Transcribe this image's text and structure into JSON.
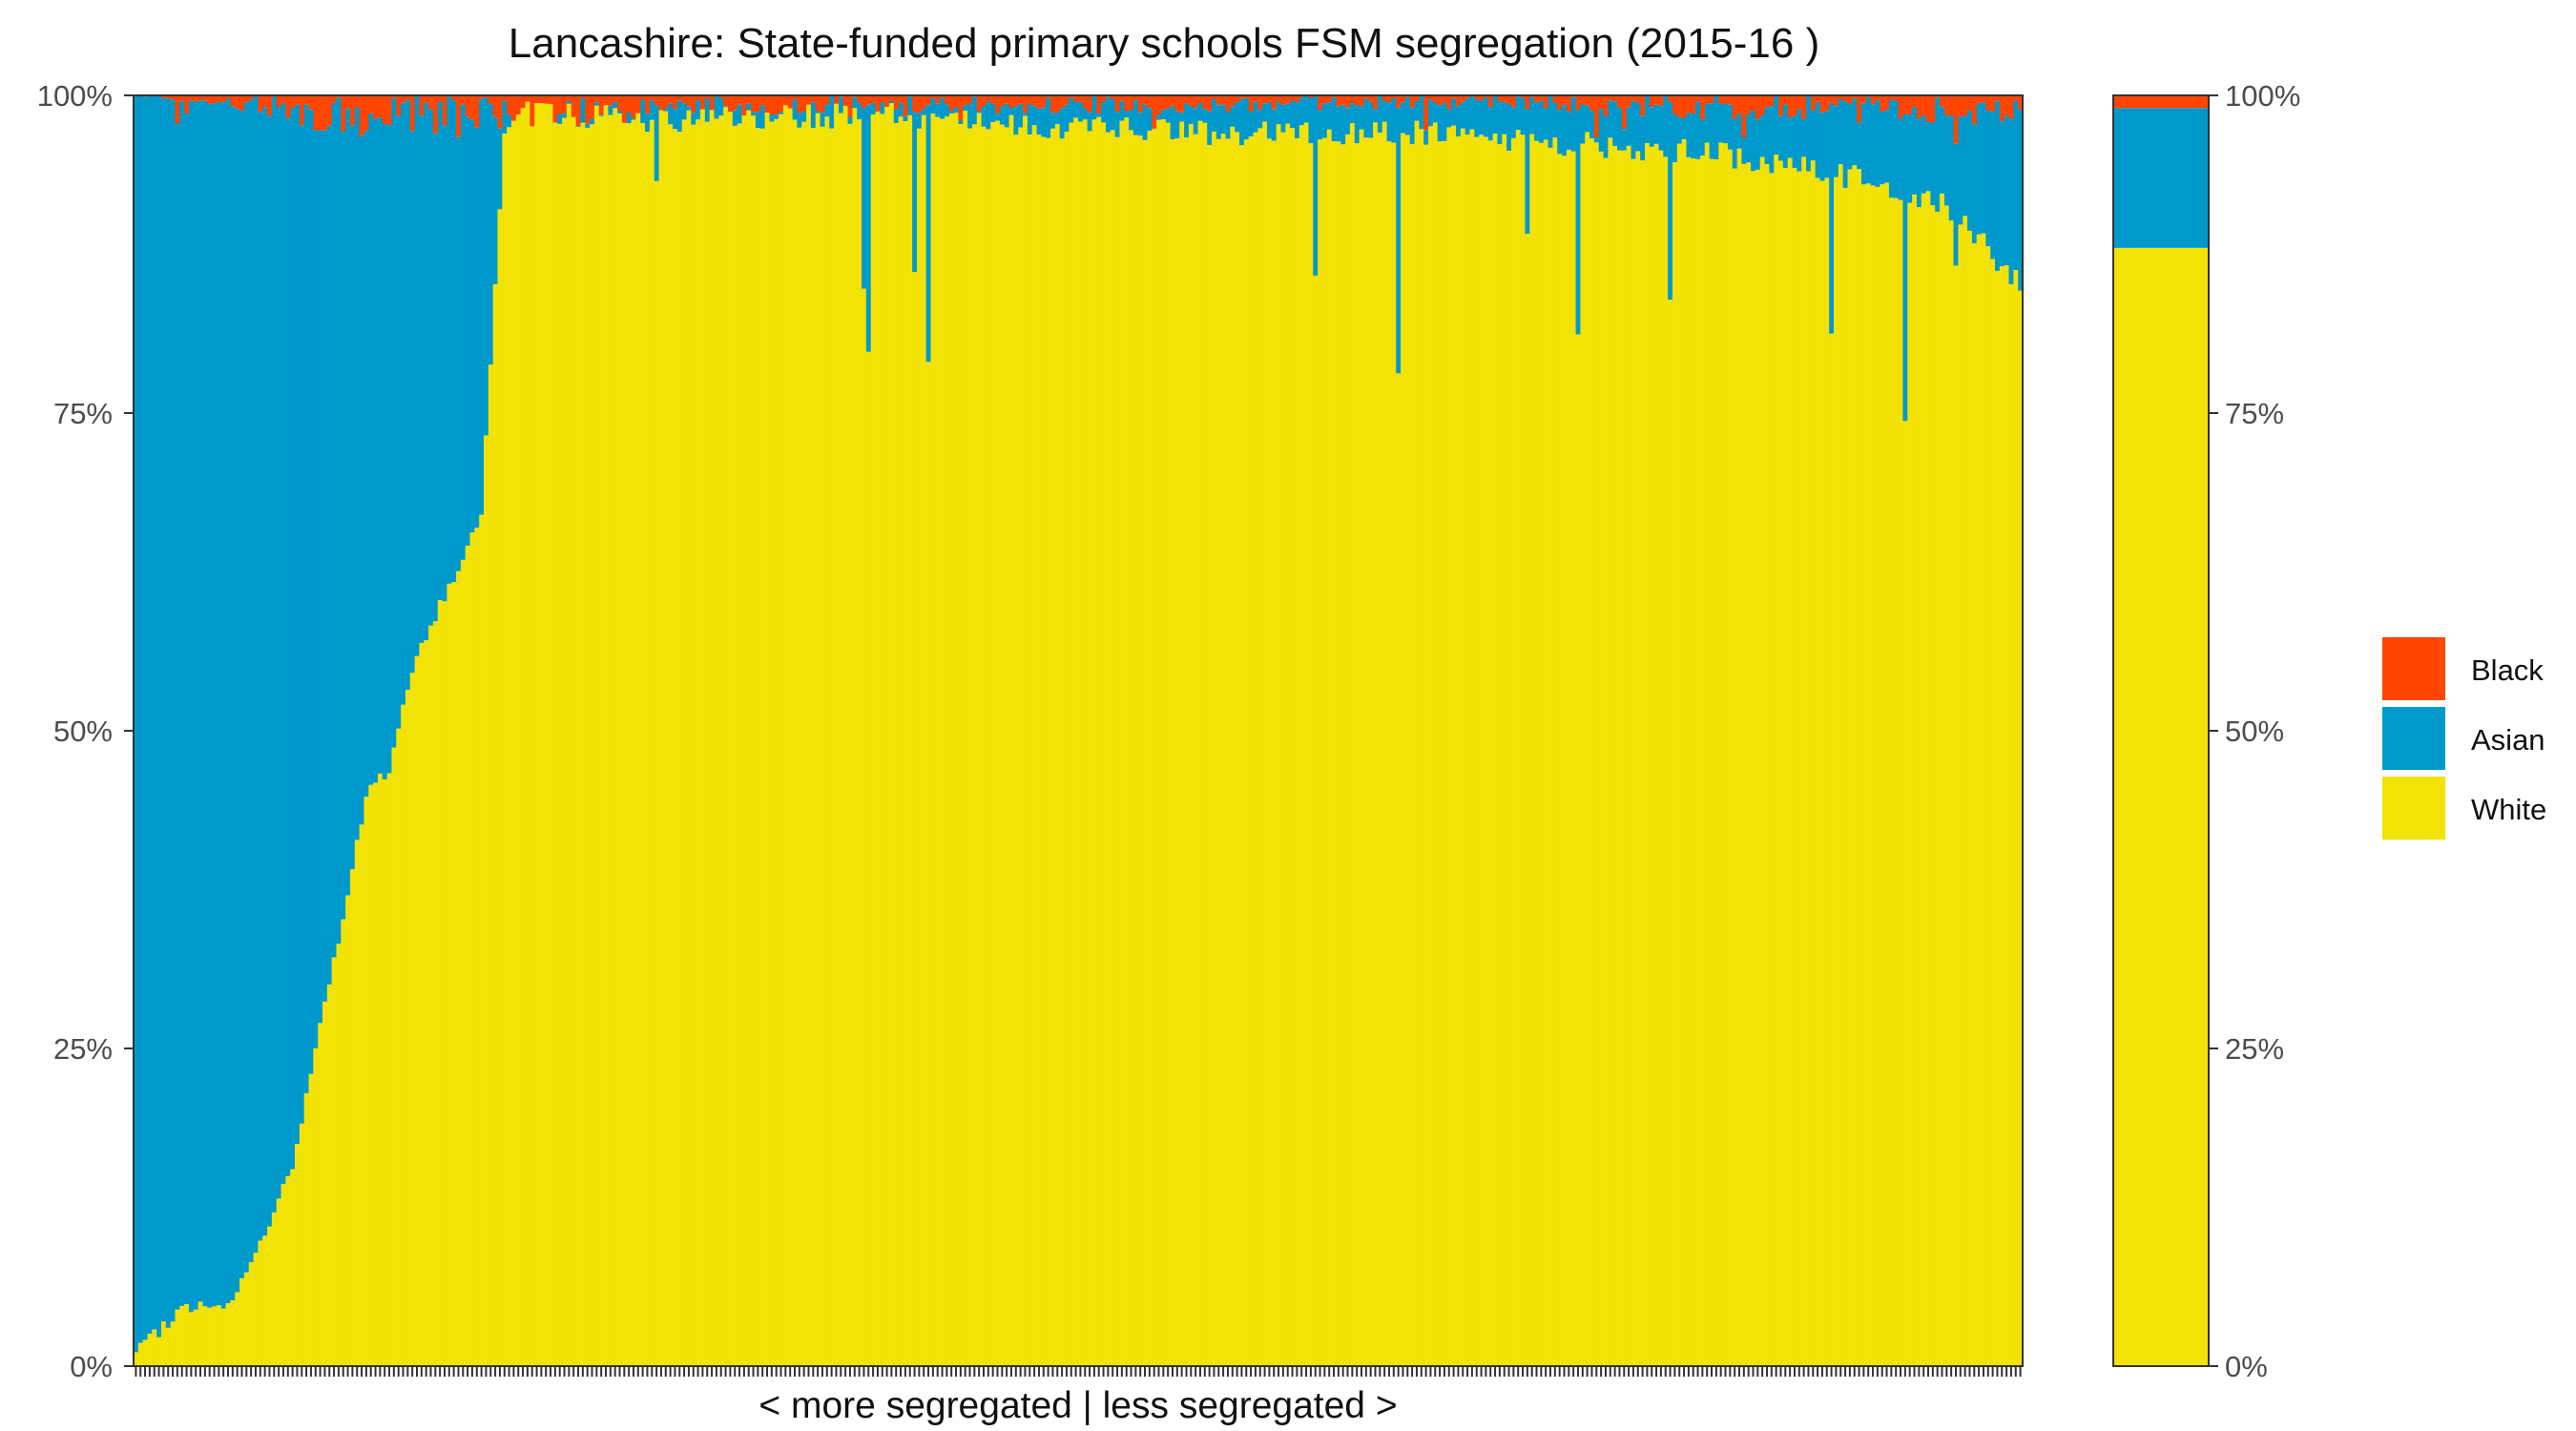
{
  "chart_data": {
    "type": "bar",
    "stacked": true,
    "percent": true,
    "title": "Lancashire: State-funded primary schools FSM segregation (2015-16 )",
    "xlabel": "< more segregated | less segregated >",
    "ylabel": "",
    "ylim": [
      0,
      1
    ],
    "y_ticks": [
      "0%",
      "25%",
      "50%",
      "75%",
      "100%"
    ],
    "y_tick_values": [
      0,
      0.25,
      0.5,
      0.75,
      1
    ],
    "grid": false,
    "legend_position": "right",
    "stack_order": [
      "White",
      "Asian",
      "Black"
    ],
    "legend": [
      {
        "name": "Black",
        "color": "#FF4500"
      },
      {
        "name": "Asian",
        "color": "#0099CC"
      },
      {
        "name": "White",
        "color": "#F2E205"
      }
    ],
    "school_count": 410,
    "schools_white_share_profile": {
      "note_points": [
        [
          0,
          0.01
        ],
        [
          10,
          0.045
        ],
        [
          20,
          0.05
        ],
        [
          25,
          0.08
        ],
        [
          30,
          0.12
        ],
        [
          35,
          0.17
        ],
        [
          40,
          0.27
        ],
        [
          45,
          0.35
        ],
        [
          50,
          0.45
        ],
        [
          55,
          0.47
        ],
        [
          60,
          0.55
        ],
        [
          65,
          0.59
        ],
        [
          70,
          0.63
        ],
        [
          75,
          0.67
        ],
        [
          80,
          0.97
        ],
        [
          85,
          0.995
        ],
        [
          120,
          0.99
        ],
        [
          160,
          0.995
        ],
        [
          200,
          0.985
        ],
        [
          240,
          0.98
        ],
        [
          280,
          0.98
        ],
        [
          300,
          0.975
        ],
        [
          320,
          0.97
        ],
        [
          340,
          0.965
        ],
        [
          360,
          0.955
        ],
        [
          380,
          0.94
        ],
        [
          395,
          0.92
        ],
        [
          409,
          0.86
        ]
      ]
    },
    "schools_black_share_profile": {
      "note_points": [
        [
          0,
          0.0
        ],
        [
          20,
          0.005
        ],
        [
          50,
          0.02
        ],
        [
          80,
          0.015
        ],
        [
          120,
          0.01
        ],
        [
          200,
          0.008
        ],
        [
          280,
          0.005
        ],
        [
          340,
          0.01
        ],
        [
          409,
          0.012
        ]
      ]
    },
    "overall": {
      "White": 0.88,
      "Asian": 0.11,
      "Black": 0.01
    }
  }
}
